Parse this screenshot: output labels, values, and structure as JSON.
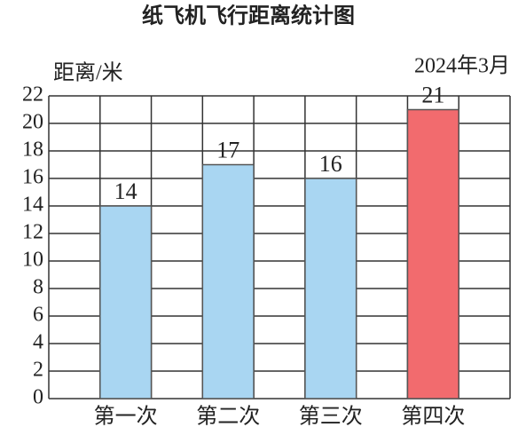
{
  "chart_data": {
    "type": "bar",
    "title": "纸飞机飞行距离统计图",
    "subtitle": "2024年3月",
    "y_label": "距离/米",
    "categories": [
      "第一次",
      "第二次",
      "第三次",
      "第四次"
    ],
    "values": [
      14,
      17,
      16,
      21
    ],
    "colors": [
      "#a9d6f2",
      "#a9d6f2",
      "#a9d6f2",
      "#f26b6e"
    ],
    "ylim": [
      0,
      22
    ],
    "yticks": [
      0,
      2,
      4,
      6,
      8,
      10,
      12,
      14,
      16,
      18,
      20,
      22
    ],
    "grid": true
  }
}
